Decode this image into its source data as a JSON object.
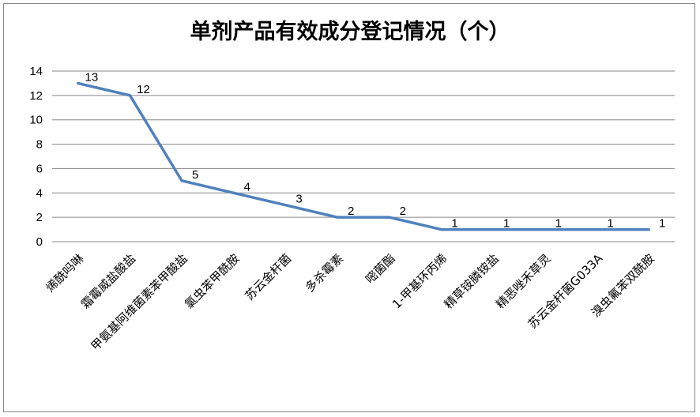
{
  "chart_data": {
    "type": "line",
    "title": "单剂产品有效成分登记情况（个）",
    "categories": [
      "烯酰吗啉",
      "霜霉威盐酸盐",
      "甲氨基阿维菌素苯甲酸盐",
      "氯虫苯甲酰胺",
      "苏云金杆菌",
      "多杀霉素",
      "嘧菌酯",
      "1-甲基环丙烯",
      "精草铵膦铵盐",
      "精恶唑禾草灵",
      "苏云金杆菌G033A",
      "溴虫氟苯双酰胺"
    ],
    "series": [
      {
        "values": [
          13,
          12,
          5,
          4,
          3,
          2,
          2,
          1,
          1,
          1,
          1,
          1
        ]
      }
    ],
    "ylim": [
      0,
      14
    ],
    "yticks": [
      0,
      2,
      4,
      6,
      8,
      10,
      12,
      14
    ],
    "grid": true,
    "line_color": "#4f81bd",
    "legend": "none"
  }
}
